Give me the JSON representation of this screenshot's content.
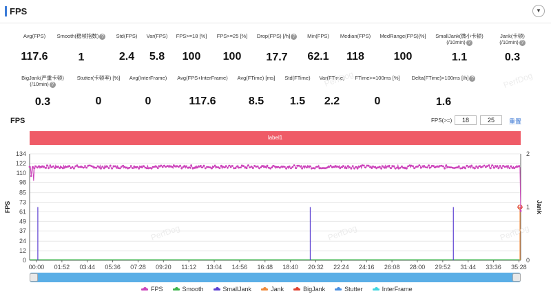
{
  "header": {
    "title": "FPS",
    "collapse_icon": "chevron-down-icon"
  },
  "stats_row1": [
    {
      "label": "Avg(FPS)",
      "value": "117.6",
      "help": false
    },
    {
      "label": "Smooth(稳帧指数)",
      "value": "1",
      "help": true
    },
    {
      "label": "Std(FPS)",
      "value": "2.4",
      "help": false
    },
    {
      "label": "Var(FPS)",
      "value": "5.8",
      "help": false
    },
    {
      "label": "FPS>=18 [%]",
      "value": "100",
      "help": false
    },
    {
      "label": "FPS>=25 [%]",
      "value": "100",
      "help": false
    },
    {
      "label": "Drop(FPS) [/h]",
      "value": "17.7",
      "help": true
    },
    {
      "label": "Min(FPS)",
      "value": "62.1",
      "help": false
    },
    {
      "label": "Median(FPS)",
      "value": "118",
      "help": false
    },
    {
      "label": "MedRange(FPS)[%]",
      "value": "100",
      "help": false
    },
    {
      "label": "SmallJank(微小卡顿)",
      "label2": "(/10min)",
      "value": "1.1",
      "help": true
    },
    {
      "label": "Jank(卡顿)",
      "label2": "(/10min)",
      "value": "0.3",
      "help": true
    }
  ],
  "stats_row2": [
    {
      "label": "BigJank(严重卡顿)",
      "label2": "(/10min)",
      "value": "0.3",
      "help": true
    },
    {
      "label": "Stutter(卡顿率) [%]",
      "value": "0",
      "help": false
    },
    {
      "label": "Avg(InterFrame)",
      "value": "0",
      "help": false
    },
    {
      "label": "Avg(FPS+InterFrame)",
      "value": "117.6",
      "help": false
    },
    {
      "label": "Avg(FTime) [ms]",
      "value": "8.5",
      "help": false
    },
    {
      "label": "Std(FTime)",
      "value": "1.5",
      "help": false
    },
    {
      "label": "Var(FTime)",
      "value": "2.2",
      "help": false
    },
    {
      "label": "FTime>=100ms [%]",
      "value": "0",
      "help": false
    },
    {
      "label": "Delta(FTime)>100ms [/h]",
      "value": "1.6",
      "help": true
    }
  ],
  "chart_controls": {
    "title": "FPS",
    "threshold_label": "FPS(>=)",
    "threshold_1": "18",
    "threshold_2": "25",
    "reset_label": "重置",
    "band_label": "label1"
  },
  "watermark": "PerfDog",
  "colors": {
    "fps": "#cc44bb",
    "smooth": "#3cb44b",
    "smalljank": "#5b3fd1",
    "jank": "#f08a3a",
    "bigjank": "#e0402e",
    "stutter": "#4a8fe0",
    "interframe": "#3fd6e0",
    "band": "#ef5b67"
  },
  "chart_data": {
    "type": "line",
    "ylabel": "FPS",
    "y2label": "Jank",
    "ylim": [
      0,
      134
    ],
    "y2lim": [
      0,
      2
    ],
    "yticks": [
      0,
      12,
      24,
      37,
      49,
      61,
      73,
      85,
      98,
      110,
      122,
      134
    ],
    "y2ticks": [
      0,
      1,
      2
    ],
    "xticks": [
      "00:00",
      "01:52",
      "03:44",
      "05:36",
      "07:28",
      "09:20",
      "11:12",
      "13:04",
      "14:56",
      "16:48",
      "18:40",
      "20:32",
      "22:24",
      "24:16",
      "26:08",
      "28:00",
      "29:52",
      "31:44",
      "33:36",
      "35:28"
    ],
    "x_range_seconds": [
      0,
      2230
    ],
    "series": [
      {
        "name": "FPS",
        "axis": "left",
        "approx_mean": 117.6,
        "approx_min": 62.1,
        "approx_max": 122,
        "dips": [
          {
            "t": 8,
            "fps": 106
          },
          {
            "t": 18,
            "fps": 100
          },
          {
            "t": 2230,
            "fps": 62.1
          }
        ]
      },
      {
        "name": "Smooth",
        "axis": "left",
        "values_note": "near 0"
      },
      {
        "name": "SmallJank",
        "axis": "right",
        "events_t": [
          6,
          1243,
          1893
        ],
        "event_value": 1
      },
      {
        "name": "Jank",
        "axis": "right",
        "events_t": [
          2228
        ],
        "event_value": 1
      },
      {
        "name": "BigJank",
        "axis": "right",
        "events_t": [
          2228
        ],
        "event_value": 1
      },
      {
        "name": "Stutter",
        "axis": "right",
        "values_note": "0"
      },
      {
        "name": "InterFrame",
        "axis": "left",
        "values_note": "0"
      }
    ]
  },
  "legend": [
    "FPS",
    "Smooth",
    "SmallJank",
    "Jank",
    "BigJank",
    "Stutter",
    "InterFrame"
  ]
}
